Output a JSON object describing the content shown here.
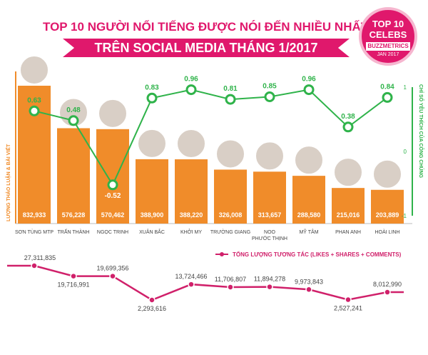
{
  "header": {
    "title_line1": "TOP 10 NGƯỜI NỔI TIẾNG ĐƯỢC NÓI ĐẾN NHIỀU NHẤT",
    "title_line2": "TRÊN SOCIAL MEDIA THÁNG 1/2017"
  },
  "badge": {
    "line1": "TOP 10",
    "line2": "CELEBS",
    "brand": "BUZZMETRICS",
    "date": "JAN 2017"
  },
  "colors": {
    "bar": "#f08c2a",
    "sentiment_line": "#2fb34a",
    "interaction_line": "#d0206a",
    "title": "#e0186c"
  },
  "chart_data": [
    {
      "type": "bar",
      "ylabel": "LƯỢNG THẢO LUẬN & BÀI VIẾT",
      "categories": [
        "SƠN TÙNG MTP",
        "TRẤN THÀNH",
        "NGỌC TRINH",
        "XUÂN BẮC",
        "KHỞI MY",
        "TRƯỜNG GIANG",
        "NOO PHƯỚC THỊNH",
        "MỸ TÂM",
        "PHAN ANH",
        "HOÀI LINH"
      ],
      "values": [
        832933,
        576228,
        570462,
        388900,
        388220,
        326008,
        313657,
        288580,
        215016,
        203889
      ],
      "value_labels": [
        "832,933",
        "576,228",
        "570,462",
        "388,900",
        "388,220",
        "326,008",
        "313,657",
        "288,580",
        "215,016",
        "203,889"
      ]
    },
    {
      "type": "line",
      "ylabel": "CHỈ SỐ YÊU THÍCH CỦA CÔNG CHÚNG",
      "ylim": [
        -1,
        1
      ],
      "y_ticks": [
        "1",
        "0",
        "-1"
      ],
      "values": [
        0.63,
        0.48,
        -0.52,
        0.83,
        0.96,
        0.81,
        0.85,
        0.96,
        0.38,
        0.84
      ],
      "value_labels": [
        "0.63",
        "0.48",
        "-0.52",
        "0.83",
        "0.96",
        "0.81",
        "0.85",
        "0.96",
        "0.38",
        "0.84"
      ]
    },
    {
      "type": "line",
      "legend": "TỔNG LƯỢNG TƯƠNG TÁC (LIKES + SHARES + COMMENTS)",
      "values": [
        27311835,
        19716991,
        19699356,
        2293616,
        13724466,
        11706807,
        11894278,
        9973843,
        2527241,
        8012990
      ],
      "value_labels": [
        "27,311,835",
        "19,716,991",
        "19,699,356",
        "2,293,616",
        "13,724,466",
        "11,706,807",
        "11,894,278",
        "9,973,843",
        "2,527,241",
        "8,012,990"
      ]
    }
  ]
}
